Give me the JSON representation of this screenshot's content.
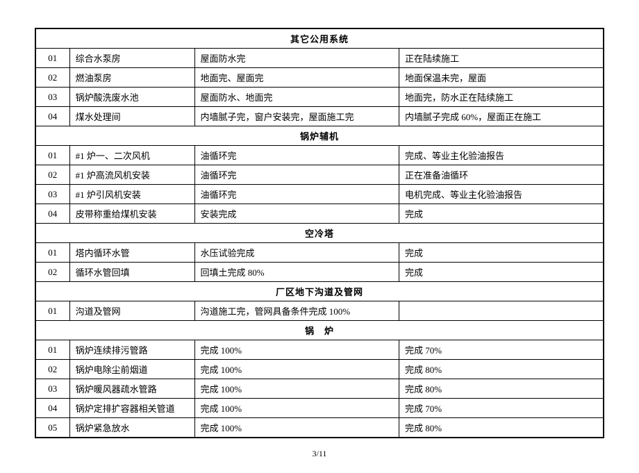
{
  "sections": [
    {
      "title": "其它公用系统",
      "rows": [
        {
          "num": "01",
          "name": "综合水泵房",
          "c1": "屋面防水完",
          "c2": "正在陆续施工"
        },
        {
          "num": "02",
          "name": "燃油泵房",
          "c1": "地面完、屋面完",
          "c2": "地面保温未完，屋面"
        },
        {
          "num": "03",
          "name": "锅炉酸洗废水池",
          "c1": "屋面防水、地面完",
          "c2": "地面完，防水正在陆续施工"
        },
        {
          "num": "04",
          "name": "煤水处理间",
          "c1": "内墙腻子完，窗户安装完，屋面施工完",
          "c2": "内墙腻子完成 60%，屋面正在施工"
        }
      ]
    },
    {
      "title": "锅炉辅机",
      "rows": [
        {
          "num": "01",
          "name": "#1 炉一、二次风机",
          "c1": "油循环完",
          "c2": "完成、等业主化验油报告"
        },
        {
          "num": "02",
          "name": "#1 炉高流风机安装",
          "c1": "油循环完",
          "c2": "正在准备油循环"
        },
        {
          "num": "03",
          "name": "#1 炉引风机安装",
          "c1": "油循环完",
          "c2": "电机完成、等业主化验油报告"
        },
        {
          "num": "04",
          "name": "皮带称重给煤机安装",
          "c1": "安装完成",
          "c2": "完成"
        }
      ]
    },
    {
      "title": "空冷塔",
      "rows": [
        {
          "num": "01",
          "name": "塔内循环水管",
          "c1": "水压试验完成",
          "c2": "完成"
        },
        {
          "num": "02",
          "name": "循环水管回填",
          "c1": "回填土完成 80%",
          "c2": "完成"
        }
      ]
    },
    {
      "title": "厂区地下沟道及管网",
      "rows": [
        {
          "num": "01",
          "name": "沟道及管网",
          "c1": "沟道施工完，管网具备条件完成 100%",
          "c2": ""
        }
      ]
    },
    {
      "title": "锅　炉",
      "rows": [
        {
          "num": "01",
          "name": "锅炉连续排污管路",
          "c1": "完成 100%",
          "c2": "完成 70%"
        },
        {
          "num": "02",
          "name": "锅炉电除尘前烟道",
          "c1": "完成 100%",
          "c2": "完成 80%"
        },
        {
          "num": "03",
          "name": "锅炉暖风器疏水管路",
          "c1": "完成 100%",
          "c2": "完成 80%"
        },
        {
          "num": "04",
          "name": "锅炉定排扩容器相关管道",
          "c1": "完成 100%",
          "c2": "完成 70%"
        },
        {
          "num": "05",
          "name": "锅炉紧急放水",
          "c1": "完成 100%",
          "c2": "完成 80%"
        }
      ]
    }
  ],
  "page_num": "3/11"
}
